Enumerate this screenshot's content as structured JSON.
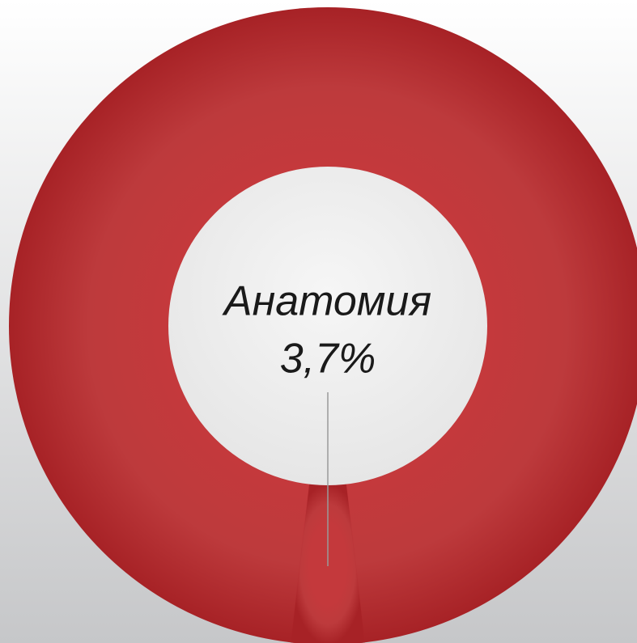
{
  "chart_data": {
    "type": "pie",
    "categories": [
      "Анатомия"
    ],
    "values": [
      3.7
    ],
    "value_labels": [
      "3,7%"
    ],
    "color": "#b5292d"
  }
}
